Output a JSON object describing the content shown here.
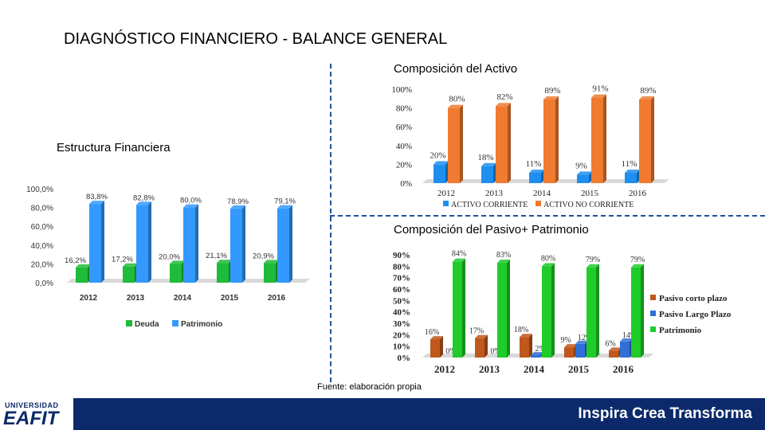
{
  "page_title": "DIAGNÓSTICO FINANCIERO - BALANCE GENERAL",
  "source_note": "Fuente: elaboración propia",
  "footer": {
    "logo_top": "UNIVERSIDAD",
    "logo_main": "EAFIT",
    "slogan": "Inspira Crea Transforma"
  },
  "colors": {
    "divider": "#1f4e9a",
    "footer_bg": "#0c2a6b",
    "green": "#1fbb3a",
    "blue": "#3399ff",
    "orange": "#f07a30",
    "brown": "#c0571b",
    "mid_blue": "#2f6fd6"
  },
  "chart_data": [
    {
      "id": "estructura",
      "type": "bar",
      "title": "Estructura Financiera",
      "categories": [
        "2012",
        "2013",
        "2014",
        "2015",
        "2016"
      ],
      "series": [
        {
          "name": "Deuda",
          "values": [
            16.2,
            17.2,
            20.0,
            21.1,
            20.9
          ],
          "labels": [
            "16,2%",
            "17,2%",
            "20,0%",
            "21,1%",
            "20,9%"
          ],
          "color": "#1fbb3a"
        },
        {
          "name": "Patrimonio",
          "values": [
            83.8,
            82.8,
            80.0,
            78.9,
            79.1
          ],
          "labels": [
            "83,8%",
            "82,8%",
            "80,0%",
            "78,9%",
            "79,1%"
          ],
          "color": "#3399ff"
        }
      ],
      "yticks": [
        "0,0%",
        "20,0%",
        "40,0%",
        "60,0%",
        "80,0%",
        "100,0%"
      ],
      "ylim": [
        0,
        100
      ],
      "legend": "bottom"
    },
    {
      "id": "activo",
      "type": "bar",
      "title": "Composición del Activo",
      "categories": [
        "2012",
        "2013",
        "2014",
        "2015",
        "2016"
      ],
      "series": [
        {
          "name": "ACTIVO CORRIENTE",
          "values": [
            20,
            18,
            11,
            9,
            11
          ],
          "labels": [
            "20%",
            "18%",
            "11%",
            "9%",
            "11%"
          ],
          "color": "#1f8fef"
        },
        {
          "name": "ACTIVO NO CORRIENTE",
          "values": [
            80,
            82,
            89,
            91,
            89
          ],
          "labels": [
            "80%",
            "82%",
            "89%",
            "91%",
            "89%"
          ],
          "color": "#f07a30"
        }
      ],
      "yticks": [
        "0%",
        "20%",
        "40%",
        "60%",
        "80%",
        "100%"
      ],
      "ylim": [
        0,
        100
      ],
      "legend": "bottom"
    },
    {
      "id": "pasivo",
      "type": "bar",
      "title": "Composición del Pasivo+ Patrimonio",
      "categories": [
        "2012",
        "2013",
        "2014",
        "2015",
        "2016"
      ],
      "series": [
        {
          "name": "Pasivo corto plazo",
          "values": [
            16,
            17,
            18,
            9,
            6
          ],
          "labels": [
            "16%",
            "17%",
            "18%",
            "9%",
            "6%"
          ],
          "color": "#c0571b"
        },
        {
          "name": "Pasivo Largo Plazo",
          "values": [
            0,
            0,
            2,
            12,
            14
          ],
          "labels": [
            "0%",
            "0%",
            "2%",
            "12%",
            "14%"
          ],
          "color": "#2f6fd6"
        },
        {
          "name": "Patrimonio",
          "values": [
            84,
            83,
            80,
            79,
            79
          ],
          "labels": [
            "84%",
            "83%",
            "80%",
            "79%",
            "79%"
          ],
          "color": "#1fcc2a"
        }
      ],
      "yticks": [
        "0%",
        "10%",
        "20%",
        "30%",
        "40%",
        "50%",
        "60%",
        "70%",
        "80%",
        "90%"
      ],
      "ylim": [
        0,
        90
      ],
      "legend": "right"
    }
  ]
}
